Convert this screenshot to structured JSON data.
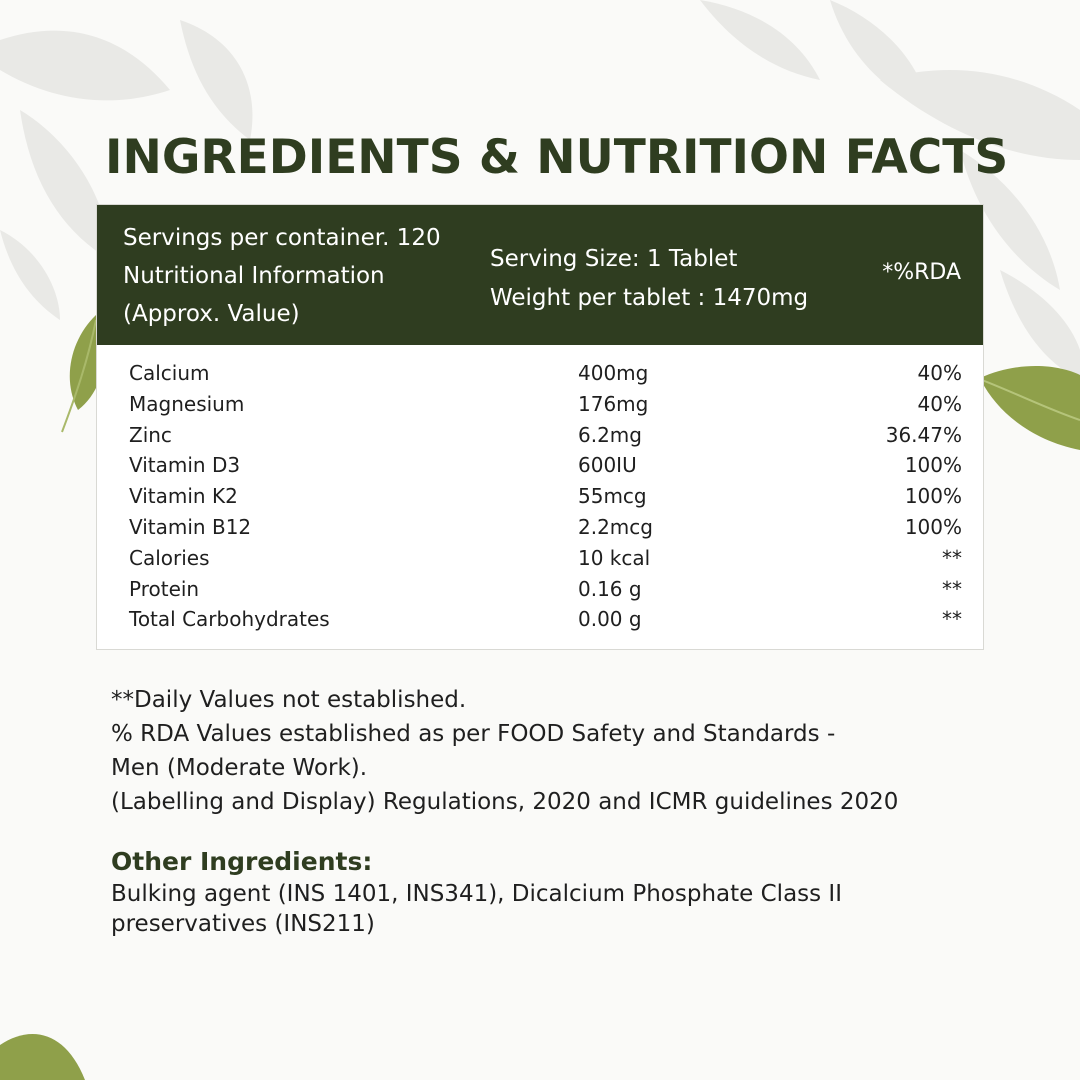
{
  "title": "INGREDIENTS & NUTRITION FACTS",
  "header": {
    "left_lines": [
      "Servings per container. 120",
      "Nutritional Information",
      "(Approx. Value)"
    ],
    "mid_lines": [
      "Serving Size: 1 Tablet",
      "Weight per tablet : 1470mg"
    ],
    "right": "*%RDA"
  },
  "rows": [
    {
      "name": "Calcium",
      "amount": "400mg",
      "rda": "40%"
    },
    {
      "name": "Magnesium",
      "amount": "176mg",
      "rda": "40%"
    },
    {
      "name": "Zinc",
      "amount": "6.2mg",
      "rda": "36.47%"
    },
    {
      "name": "Vitamin D3",
      "amount": "600IU",
      "rda": "100%"
    },
    {
      "name": "Vitamin K2",
      "amount": "55mcg",
      "rda": "100%"
    },
    {
      "name": "Vitamin B12",
      "amount": "2.2mcg",
      "rda": "100%"
    },
    {
      "name": "Calories",
      "amount": "10 kcal",
      "rda": "**"
    },
    {
      "name": "Protein",
      "amount": "0.16 g",
      "rda": "**"
    },
    {
      "name": "Total Carbohydrates",
      "amount": "0.00 g",
      "rda": "**"
    }
  ],
  "notes": [
    "**Daily Values not established.",
    "% RDA Values established as per FOOD Safety and Standards -",
    "Men (Moderate Work).",
    "(Labelling and Display) Regulations, 2020 and ICMR guidelines 2020"
  ],
  "other_ingredients": {
    "title": "Other Ingredients:",
    "lines": [
      "Bulking agent (INS 1401, INS341), Dicalcium Phosphate Class II",
      "preservatives (INS211)"
    ]
  },
  "colors": {
    "accent": "#2f3d20",
    "leaf": "#8fa04a",
    "background_leaf": "#e6e6e3"
  }
}
